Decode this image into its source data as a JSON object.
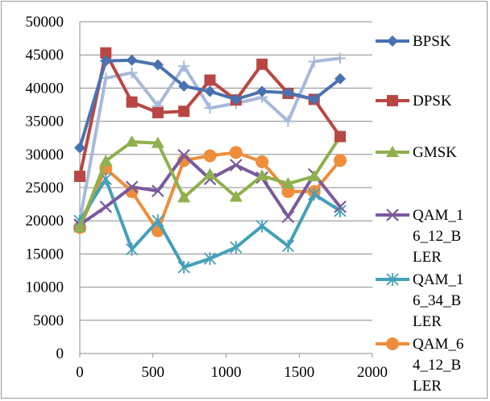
{
  "chart_data": {
    "type": "line",
    "title": "",
    "xlabel": "",
    "ylabel": "",
    "xlim": [
      0,
      2000
    ],
    "ylim": [
      0,
      50000
    ],
    "x_ticks": [
      "0",
      "500",
      "1000",
      "1500",
      "2000"
    ],
    "y_ticks": [
      "0",
      "5000",
      "10000",
      "15000",
      "20000",
      "25000",
      "30000",
      "35000",
      "40000",
      "45000",
      "50000"
    ],
    "grid": "horizontal",
    "legend_position": "right",
    "x": [
      0,
      178,
      356,
      534,
      712,
      890,
      1068,
      1246,
      1424,
      1602,
      1780
    ],
    "series": [
      {
        "name": "BPSK",
        "color": "#4a72b0",
        "marker": "diamond",
        "values": [
          31000,
          44100,
          44200,
          43500,
          40300,
          39500,
          38300,
          39500,
          39300,
          38300,
          41400
        ]
      },
      {
        "name": "DPSK",
        "color": "#b84744",
        "marker": "square",
        "values": [
          26700,
          45300,
          37900,
          36300,
          36500,
          41200,
          38200,
          43600,
          39200,
          38300,
          32700
        ]
      },
      {
        "name": "GMSK",
        "color": "#8fb04e",
        "marker": "triangle",
        "values": [
          19000,
          29000,
          31900,
          31700,
          23500,
          27000,
          23600,
          26800,
          25600,
          26700,
          32700
        ]
      },
      {
        "name": "QAM_16_12_BLER",
        "color": "#7a5a9c",
        "marker": "x",
        "values": [
          19400,
          22100,
          25100,
          24500,
          29900,
          26300,
          28400,
          26500,
          20600,
          27000,
          22100
        ]
      },
      {
        "name": "QAM_16_34_BLER",
        "color": "#43a0b8",
        "marker": "star",
        "values": [
          20000,
          26300,
          15700,
          20000,
          13000,
          14300,
          16000,
          19200,
          16200,
          24000,
          21500
        ]
      },
      {
        "name": "QAM_64_12_BLER",
        "color": "#ef8d3a",
        "marker": "circle",
        "values": [
          19000,
          27900,
          24400,
          18500,
          29100,
          29800,
          30300,
          28900,
          24400,
          24400,
          29100
        ]
      },
      {
        "name": "",
        "color": "#a7b9dc",
        "marker": "plus",
        "values": [
          20000,
          41500,
          42300,
          37300,
          43300,
          37000,
          37700,
          38600,
          35000,
          44000,
          44500
        ]
      }
    ],
    "legend": [
      {
        "lines": [
          "BPSK"
        ],
        "series": 0
      },
      {
        "lines": [
          "DPSK"
        ],
        "series": 1
      },
      {
        "lines": [
          "GMSK"
        ],
        "series": 2
      },
      {
        "lines": [
          "QAM_1",
          "6_12_B",
          "LER"
        ],
        "series": 3
      },
      {
        "lines": [
          "QAM_1",
          "6_34_B",
          "LER"
        ],
        "series": 4
      },
      {
        "lines": [
          "QAM_6",
          "4_12_B",
          "LER"
        ],
        "series": 5
      }
    ]
  }
}
